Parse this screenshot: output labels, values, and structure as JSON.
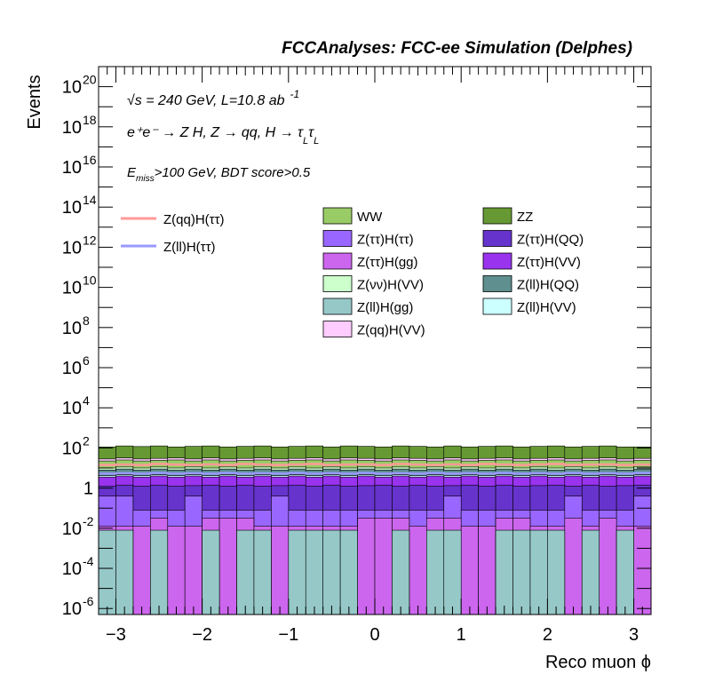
{
  "header": {
    "title": "FCCAnalyses: FCC-ee Simulation (Delphes)"
  },
  "annotations": {
    "energy_sqrt": "√s",
    "energy_rest": " = 240 GeV, L=10.8 ab",
    "lumi_exp": "-1",
    "process_line": "e⁺e⁻ → Z H, Z → qq, H → τ",
    "process_sub1": "L",
    "process_tau2": "τ",
    "process_sub2": "L",
    "cut_E": "E",
    "cut_sub": "miss",
    "cut_rest": ">100 GeV, BDT score>0.5"
  },
  "chart_data": {
    "type": "bar",
    "title": "FCCAnalyses: FCC-ee Simulation (Delphes)",
    "xlabel": "Reco muon ϕ",
    "ylabel": "Events",
    "xlim": [
      -3.2,
      3.2
    ],
    "ylim_log10": [
      -6.3,
      21
    ],
    "yscale": "log",
    "x_ticks": [
      "−3",
      "−2",
      "−1",
      "0",
      "1",
      "2",
      "3"
    ],
    "y_ticks": [
      {
        "base": "10",
        "exp": "20"
      },
      {
        "base": "10",
        "exp": "18"
      },
      {
        "base": "10",
        "exp": "16"
      },
      {
        "base": "10",
        "exp": "14"
      },
      {
        "base": "10",
        "exp": "12"
      },
      {
        "base": "10",
        "exp": "10"
      },
      {
        "base": "10",
        "exp": "8"
      },
      {
        "base": "10",
        "exp": "6"
      },
      {
        "base": "10",
        "exp": "4"
      },
      {
        "base": "10",
        "exp": "2"
      },
      {
        "base": "1",
        "exp": ""
      },
      {
        "base": "10",
        "exp": "-2"
      },
      {
        "base": "10",
        "exp": "-4"
      },
      {
        "base": "10",
        "exp": "-6"
      }
    ],
    "bin_edges": [
      -3.2,
      -3.0,
      -2.8,
      -2.6,
      -2.4,
      -2.2,
      -2.0,
      -1.8,
      -1.6,
      -1.4,
      -1.2,
      -1.0,
      -0.8,
      -0.6,
      -0.4,
      -0.2,
      0.0,
      0.2,
      0.4,
      0.6,
      0.8,
      1.0,
      1.2,
      1.4,
      1.6,
      1.8,
      2.0,
      2.2,
      2.4,
      2.6,
      2.8,
      3.0,
      3.2
    ],
    "stacked_log10_edges": [
      {
        "name": "Z(ll)H(gg)",
        "color": "#96c8c8",
        "top": [
          -2.1,
          -2.1,
          -9,
          -2.1,
          -9,
          -9,
          -2.1,
          -9,
          -2.1,
          -2.1,
          -9,
          -2.1,
          -2.1,
          -2.1,
          -2.1,
          -9,
          -9,
          -2.1,
          -9,
          -2.1,
          -2.1,
          -9,
          -9,
          -2.1,
          -2.1,
          -2.1,
          -2.1,
          -9,
          -2.1,
          -9,
          -2.1,
          -9
        ]
      },
      {
        "name": "Z(ττ)H(gg)",
        "color": "#cc66ee",
        "top": [
          -1.9,
          -1.9,
          -1.9,
          -1.5,
          -1.9,
          -1.9,
          -1.5,
          -1.5,
          -1.5,
          -1.9,
          -1.9,
          -1.9,
          -1.9,
          -1.9,
          -1.9,
          -1.5,
          -1.5,
          -1.5,
          -1.9,
          -1.5,
          -1.5,
          -1.9,
          -1.9,
          -1.5,
          -1.5,
          -1.9,
          -1.9,
          -1.5,
          -1.9,
          -1.5,
          -1.9,
          -1.9
        ]
      },
      {
        "name": "Z(ττ)H(ττ)",
        "color": "#9966ff",
        "top": [
          -0.4,
          -0.4,
          -1.1,
          -1.1,
          -1.1,
          -0.4,
          -1.1,
          -1.1,
          -1.1,
          -1.1,
          -0.4,
          -1.1,
          -1.1,
          -1.1,
          -1.1,
          -1.1,
          -1.1,
          -1.1,
          -1.1,
          -1.1,
          -0.4,
          -1.1,
          -1.1,
          -1.1,
          -1.1,
          -1.1,
          -1.1,
          -0.4,
          -1.1,
          -1.1,
          -1.1,
          -0.4
        ]
      },
      {
        "name": "Z(ττ)H(QQ)",
        "color": "#6633cc",
        "top": [
          0.1,
          0.15,
          0.1,
          0.15,
          0.1,
          0.12,
          0.15,
          0.1,
          0.15,
          0.1,
          0.12,
          0.15,
          0.1,
          0.15,
          0.1,
          0.12,
          0.15,
          0.1,
          0.15,
          0.1,
          0.12,
          0.15,
          0.1,
          0.15,
          0.1,
          0.12,
          0.15,
          0.1,
          0.15,
          0.1,
          0.12,
          0.15
        ]
      },
      {
        "name": "Z(ττ)H(VV)",
        "color": "#9933ee",
        "top": [
          0.55,
          0.6,
          0.55,
          0.6,
          0.55,
          0.6,
          0.55,
          0.6,
          0.55,
          0.6,
          0.55,
          0.6,
          0.55,
          0.6,
          0.55,
          0.6,
          0.55,
          0.6,
          0.55,
          0.6,
          0.55,
          0.6,
          0.55,
          0.6,
          0.55,
          0.6,
          0.55,
          0.6,
          0.55,
          0.6,
          0.55,
          0.6
        ]
      },
      {
        "name": "Z(ll)H(VV)",
        "color": "#ccffff",
        "top": [
          0.62,
          0.66,
          0.62,
          0.66,
          0.62,
          0.66,
          0.62,
          0.66,
          0.62,
          0.66,
          0.62,
          0.66,
          0.62,
          0.66,
          0.62,
          0.66,
          0.62,
          0.66,
          0.62,
          0.66,
          0.62,
          0.66,
          0.62,
          0.66,
          0.62,
          0.66,
          0.62,
          0.66,
          0.62,
          0.66,
          0.62,
          0.66
        ]
      },
      {
        "name": "Z(ll)H(QQ)",
        "color": "#5f8f8f",
        "top": [
          0.9,
          0.95,
          0.9,
          0.95,
          0.9,
          0.95,
          0.9,
          0.95,
          0.9,
          0.95,
          0.9,
          0.95,
          0.9,
          0.95,
          0.9,
          0.95,
          0.9,
          0.95,
          0.9,
          0.95,
          0.9,
          0.95,
          0.9,
          0.95,
          0.9,
          0.95,
          0.9,
          0.95,
          0.9,
          0.95,
          0.9,
          0.95
        ]
      },
      {
        "name": "Z(νν)H(VV)",
        "color": "#ccffcc",
        "top": [
          1.0,
          1.05,
          1.0,
          1.05,
          1.0,
          1.05,
          1.0,
          1.05,
          1.0,
          1.05,
          1.0,
          1.05,
          1.0,
          1.05,
          1.0,
          1.05,
          1.0,
          1.05,
          1.0,
          1.05,
          1.0,
          1.05,
          1.0,
          1.05,
          1.0,
          1.05,
          1.0,
          1.05,
          1.0,
          1.05,
          1.0,
          1.05
        ]
      },
      {
        "name": "WW",
        "color": "#99cc66",
        "top": [
          1.35,
          1.4,
          1.35,
          1.38,
          1.4,
          1.35,
          1.4,
          1.35,
          1.38,
          1.4,
          1.35,
          1.38,
          1.4,
          1.35,
          1.4,
          1.38,
          1.35,
          1.4,
          1.38,
          1.35,
          1.4,
          1.35,
          1.38,
          1.4,
          1.35,
          1.38,
          1.4,
          1.35,
          1.38,
          1.4,
          1.35,
          1.38
        ]
      },
      {
        "name": "Z(qq)H(VV)",
        "color": "#ffccff",
        "top": [
          1.45,
          1.5,
          1.45,
          1.48,
          1.5,
          1.45,
          1.5,
          1.45,
          1.48,
          1.5,
          1.45,
          1.48,
          1.5,
          1.45,
          1.5,
          1.48,
          1.45,
          1.5,
          1.48,
          1.45,
          1.5,
          1.45,
          1.48,
          1.5,
          1.45,
          1.48,
          1.5,
          1.45,
          1.48,
          1.5,
          1.45,
          1.48
        ]
      },
      {
        "name": "ZZ",
        "color": "#669933",
        "top": [
          2.05,
          2.1,
          2.07,
          2.1,
          2.05,
          2.08,
          2.1,
          2.05,
          2.08,
          2.1,
          2.05,
          2.08,
          2.1,
          2.05,
          2.1,
          2.08,
          2.05,
          2.1,
          2.08,
          2.05,
          2.1,
          2.05,
          2.08,
          2.1,
          2.05,
          2.08,
          2.1,
          2.05,
          2.08,
          2.1,
          2.05,
          2.05
        ]
      }
    ],
    "signal_lines_log10": [
      {
        "name": "Z(qq)H(ττ)",
        "color": "#ff9999",
        "values": [
          1.15,
          1.17,
          1.15,
          1.2,
          1.17,
          1.15,
          1.18,
          1.15,
          1.2,
          1.17,
          1.15,
          1.18,
          1.2,
          1.15,
          1.17,
          1.18,
          1.15,
          1.2,
          1.17,
          1.15,
          1.18,
          1.15,
          1.2,
          1.17,
          1.15,
          1.18,
          1.2,
          1.15,
          1.17,
          1.18,
          1.15,
          1.17
        ]
      },
      {
        "name": "Z(ll)H(ττ)",
        "color": "#9999ff",
        "values": [
          0.72,
          0.74,
          0.72,
          0.75,
          0.72,
          0.74,
          0.72,
          0.75,
          0.72,
          0.74,
          0.72,
          0.75,
          0.72,
          0.74,
          0.72,
          0.75,
          0.72,
          0.74,
          0.72,
          0.75,
          0.72,
          0.74,
          0.72,
          0.75,
          0.72,
          0.74,
          0.72,
          0.75,
          0.72,
          0.74,
          0.72,
          0.75
        ]
      }
    ],
    "legend": {
      "lines": [
        {
          "name": "Z(qq)H(ττ)",
          "color": "#ff9999"
        },
        {
          "name": "Z(ll)H(ττ)",
          "color": "#9999ff"
        }
      ],
      "boxes": [
        {
          "name": "WW",
          "color": "#99cc66"
        },
        {
          "name": "ZZ",
          "color": "#669933"
        },
        {
          "name": "Z(ττ)H(ττ)",
          "color": "#9966ff"
        },
        {
          "name": "Z(ττ)H(QQ)",
          "color": "#6633cc"
        },
        {
          "name": "Z(ττ)H(gg)",
          "color": "#cc66ee"
        },
        {
          "name": "Z(ττ)H(VV)",
          "color": "#9933ee"
        },
        {
          "name": "Z(νν)H(VV)",
          "color": "#ccffcc"
        },
        {
          "name": "Z(ll)H(QQ)",
          "color": "#5f8f8f"
        },
        {
          "name": "Z(ll)H(gg)",
          "color": "#96c8c8"
        },
        {
          "name": "Z(ll)H(VV)",
          "color": "#ccffff"
        },
        {
          "name": "Z(qq)H(VV)",
          "color": "#ffccff"
        }
      ]
    }
  }
}
